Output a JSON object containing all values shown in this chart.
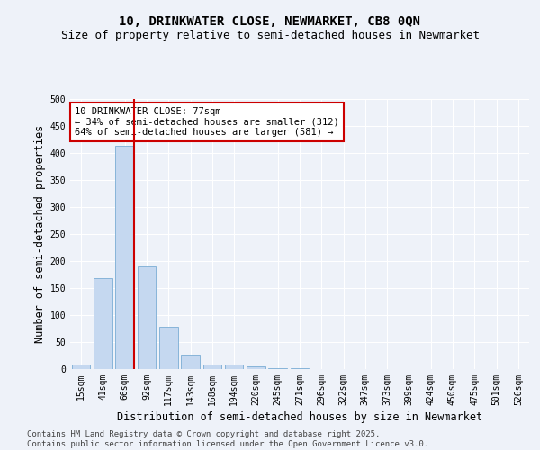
{
  "title": "10, DRINKWATER CLOSE, NEWMARKET, CB8 0QN",
  "subtitle": "Size of property relative to semi-detached houses in Newmarket",
  "xlabel": "Distribution of semi-detached houses by size in Newmarket",
  "ylabel": "Number of semi-detached properties",
  "categories": [
    "15sqm",
    "41sqm",
    "66sqm",
    "92sqm",
    "117sqm",
    "143sqm",
    "168sqm",
    "194sqm",
    "220sqm",
    "245sqm",
    "271sqm",
    "296sqm",
    "322sqm",
    "347sqm",
    "373sqm",
    "399sqm",
    "424sqm",
    "450sqm",
    "475sqm",
    "501sqm",
    "526sqm"
  ],
  "values": [
    8,
    168,
    413,
    190,
    79,
    27,
    8,
    8,
    5,
    2,
    1,
    0,
    0,
    0,
    0,
    0,
    0,
    0,
    0,
    0,
    0
  ],
  "bar_color": "#c5d8f0",
  "bar_edge_color": "#7aadd4",
  "vline_color": "#cc0000",
  "vline_x_index": 2,
  "annotation_text": "10 DRINKWATER CLOSE: 77sqm\n← 34% of semi-detached houses are smaller (312)\n64% of semi-detached houses are larger (581) →",
  "annotation_box_color": "#ffffff",
  "annotation_box_edge_color": "#cc0000",
  "footer_line1": "Contains HM Land Registry data © Crown copyright and database right 2025.",
  "footer_line2": "Contains public sector information licensed under the Open Government Licence v3.0.",
  "bg_color": "#eef2f9",
  "plot_bg_color": "#eef2f9",
  "grid_color": "#ffffff",
  "title_fontsize": 10,
  "subtitle_fontsize": 9,
  "label_fontsize": 8.5,
  "tick_fontsize": 7,
  "annot_fontsize": 7.5,
  "footer_fontsize": 6.5,
  "ylim": [
    0,
    500
  ],
  "yticks": [
    0,
    50,
    100,
    150,
    200,
    250,
    300,
    350,
    400,
    450,
    500
  ]
}
